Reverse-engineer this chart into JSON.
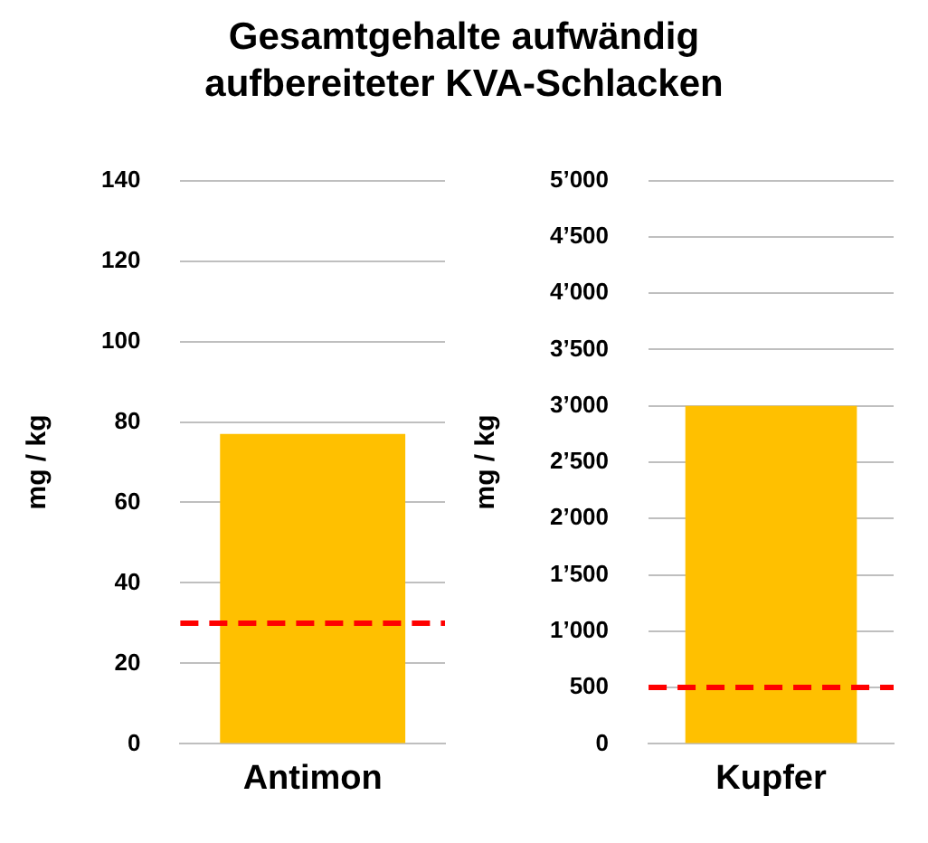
{
  "chart_data": [
    {
      "type": "bar",
      "title": "Gesamtgehalte aufwändig aufbereiteter KVA-Schlacken",
      "ylabel": "mg / kg",
      "categories": [
        "Antimon"
      ],
      "values": [
        77
      ],
      "color": "#ffc000",
      "ylim": [
        0,
        140
      ],
      "yticks": [
        0,
        20,
        40,
        60,
        80,
        100,
        120,
        140
      ],
      "grid": "y",
      "legend": false,
      "ref_lines": [
        {
          "axis": "y",
          "value": 30,
          "color": "#ff0000",
          "line_style": "dashed"
        }
      ]
    },
    {
      "type": "bar",
      "ylabel": "mg / kg",
      "categories": [
        "Kupfer"
      ],
      "values": [
        3000
      ],
      "color": "#ffc000",
      "ylim": [
        0,
        5000
      ],
      "yticks": [
        0,
        500,
        {
          "value": 1000,
          "label": "1’000"
        },
        {
          "value": 1500,
          "label": "1’500"
        },
        {
          "value": 2000,
          "label": "2’000"
        },
        {
          "value": 2500,
          "label": "2’500"
        },
        {
          "value": 3000,
          "label": "3’000"
        },
        {
          "value": 3500,
          "label": "3’500"
        },
        {
          "value": 4000,
          "label": "4’000"
        },
        {
          "value": 4500,
          "label": "4’500"
        },
        {
          "value": 5000,
          "label": "5’000"
        }
      ],
      "grid": "y",
      "legend": false,
      "ref_lines": [
        {
          "axis": "y",
          "value": 500,
          "color": "#ff0000",
          "line_style": "dashed"
        }
      ]
    }
  ]
}
